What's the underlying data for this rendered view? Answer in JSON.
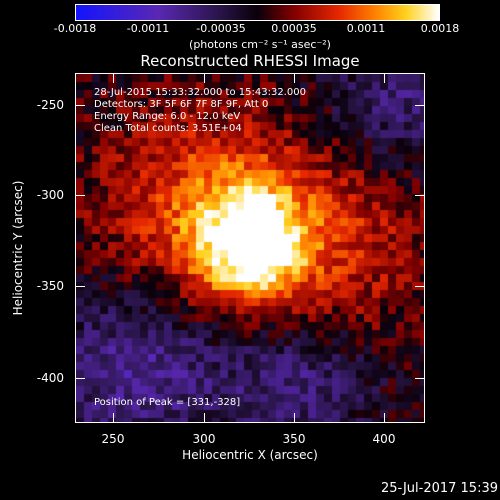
{
  "colorbar": {
    "ticks": [
      "-0.0018",
      "-0.0011",
      "-0.00035",
      "0.00035",
      "0.0011",
      "0.0018"
    ],
    "unit": "(photons cm⁻² s⁻¹ asec⁻²)"
  },
  "title": "Reconstructed RHESSI Image",
  "info": {
    "line1": "28-Jul-2015 15:33:32.000 to 15:43:32.000",
    "line2": "Detectors: 3F 5F 6F 7F 8F 9F, Att 0",
    "line3": "Energy Range: 6.0 - 12.0 keV",
    "line4": "Clean    Total counts: 3.51E+04"
  },
  "peak": "Position of Peak = [331,-328]",
  "axes": {
    "xlabel": "Heliocentric X (arcsec)",
    "ylabel": "Heliocentric Y (arcsec)",
    "xticks": [
      "250",
      "300",
      "350",
      "400"
    ],
    "yticks": [
      "-250",
      "-300",
      "-350",
      "-400"
    ],
    "xlim": [
      232,
      425
    ],
    "ylim": [
      -425,
      -233
    ]
  },
  "image": {
    "peak_x": 331,
    "peak_y": -328,
    "colormap": "hot-with-blue-negatives"
  },
  "timestamp": "25-Jul-2017 15:39"
}
